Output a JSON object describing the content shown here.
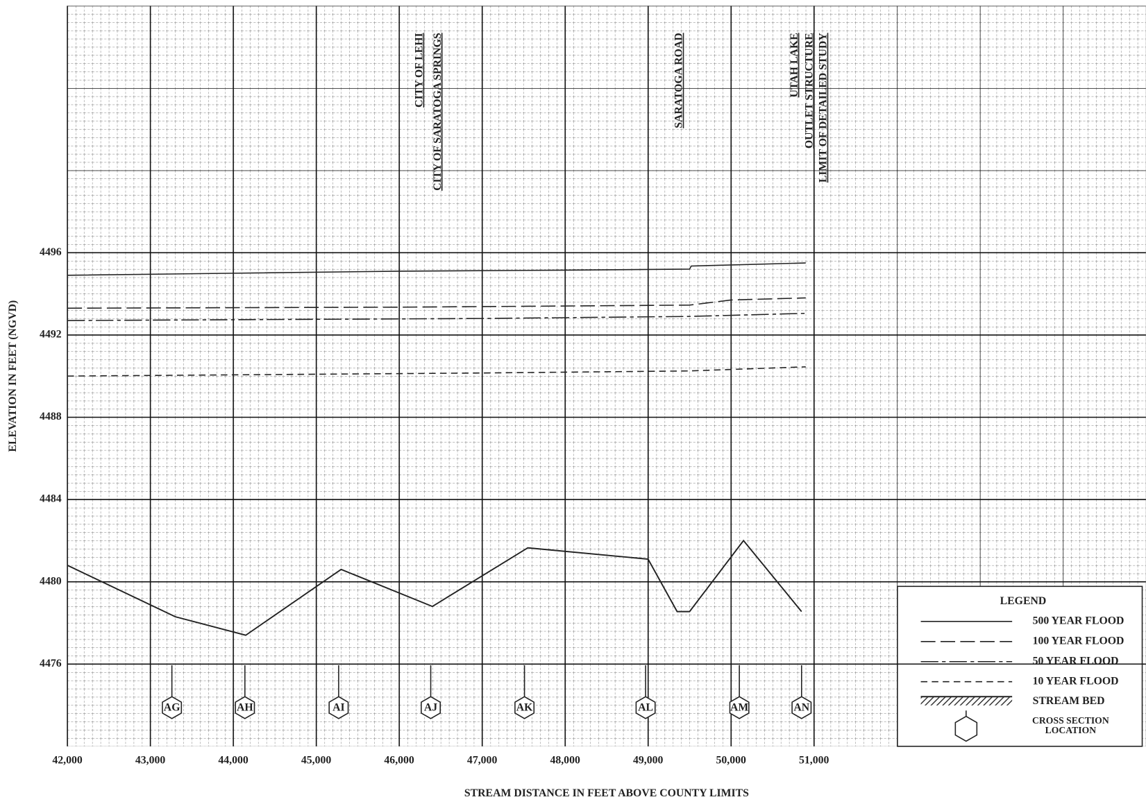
{
  "chart_data": {
    "type": "line",
    "xlabel": "STREAM DISTANCE IN FEET ABOVE COUNTY LIMITS",
    "ylabel": "ELEVATION IN FEET (NGVD)",
    "xlim": [
      42000,
      55000
    ],
    "ylim": [
      4472,
      4508
    ],
    "xticks": [
      {
        "value": 42000,
        "label": "42,000"
      },
      {
        "value": 43000,
        "label": "43,000"
      },
      {
        "value": 44000,
        "label": "44,000"
      },
      {
        "value": 45000,
        "label": "45,000"
      },
      {
        "value": 46000,
        "label": "46,000"
      },
      {
        "value": 47000,
        "label": "47,000"
      },
      {
        "value": 48000,
        "label": "48,000"
      },
      {
        "value": 49000,
        "label": "49,000"
      },
      {
        "value": 50000,
        "label": "50,000"
      },
      {
        "value": 51000,
        "label": "51,000"
      }
    ],
    "yticks": [
      4476,
      4480,
      4484,
      4488,
      4492,
      4496
    ],
    "grid": true,
    "legend_title": "LEGEND",
    "legend_position": "lower right",
    "series": [
      {
        "name": "500 YEAR FLOOD",
        "color": "#222222",
        "dash": "solid",
        "x": [
          42000,
          44000,
          46000,
          48000,
          49500,
          49520,
          50900
        ],
        "values": [
          4494.9,
          4495.0,
          4495.1,
          4495.15,
          4495.2,
          4495.35,
          4495.5
        ]
      },
      {
        "name": "100 YEAR FLOOD",
        "color": "#222222",
        "dash": "long-dash",
        "x": [
          42000,
          46000,
          49500,
          50000,
          50900
        ],
        "values": [
          4493.3,
          4493.35,
          4493.45,
          4493.7,
          4493.8
        ]
      },
      {
        "name": "50 YEAR FLOOD",
        "color": "#222222",
        "dash": "dash-dot",
        "x": [
          42000,
          47000,
          49500,
          50900
        ],
        "values": [
          4492.7,
          4492.8,
          4492.9,
          4493.05
        ]
      },
      {
        "name": "10 YEAR FLOOD",
        "color": "#222222",
        "dash": "dash",
        "x": [
          42000,
          47000,
          49500,
          50900
        ],
        "values": [
          4490.0,
          4490.15,
          4490.25,
          4490.45
        ]
      },
      {
        "name": "STREAM BED",
        "color": "#222222",
        "dash": "solid",
        "marker": "hatch",
        "x": [
          42000,
          43300,
          44150,
          45300,
          46400,
          47550,
          49000,
          49350,
          49500,
          50150,
          50850
        ],
        "values": [
          4480.8,
          4478.3,
          4477.4,
          4480.6,
          4478.8,
          4481.65,
          4481.1,
          4478.55,
          4478.55,
          4482.0,
          4478.55
        ]
      }
    ],
    "cross_sections": {
      "name": "CROSS SECTION LOCATION",
      "x": [
        43260,
        44140,
        45270,
        46380,
        47510,
        48970,
        50100,
        50850
      ],
      "labels": [
        "AG",
        "AH",
        "AI",
        "AJ",
        "AK",
        "AL",
        "AM",
        "AN"
      ]
    },
    "annotations": [
      {
        "text": "CITY OF LEHI",
        "x": 46250
      },
      {
        "text": "CITY OF SARATOGA SPRINGS",
        "x": 46470
      },
      {
        "text": "SARATOGA ROAD",
        "x": 49380
      },
      {
        "text": "UTAH LAKE",
        "x": 50770
      },
      {
        "text": "OUTLET STRUCTURE",
        "x": 50950
      },
      {
        "text": "LIMIT OF DETAILED STUDY",
        "x": 51120
      }
    ]
  }
}
